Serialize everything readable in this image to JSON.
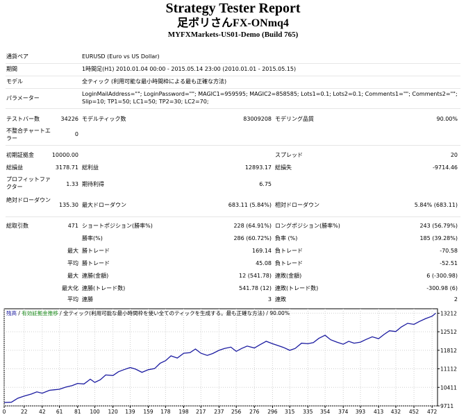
{
  "header": {
    "title": "Strategy Tester Report",
    "ea_name": "足ボリさんFX-ONmq4",
    "server": "MYFXMarkets-US01-Demo (Build 765)"
  },
  "info": {
    "symbol_label": "通貨ペア",
    "symbol_value": "EURUSD (Euro vs US Dollar)",
    "period_label": "期間",
    "period_value": "1時間足(H1) 2010.01.04 00:00 - 2015.05.14 23:00 (2010.01.01 - 2015.05.15)",
    "model_label": "モデル",
    "model_value": "全ティック (利用可能な最小時間枠による最も正確な方法)",
    "params_label": "パラメーター",
    "params_value": "LoginMailAddress=\"\"; LoginPassword=\"\"; MAGIC1=959595; MAGIC2=858585; Lots1=0.1; Lots2=0.1; Comments1=\"\"; Comments2=\"\"; Slip=10; TP1=50; LC1=50; TP2=30; LC2=70;"
  },
  "stats": {
    "bars_label": "テストバー数",
    "bars_value": "34226",
    "ticks_label": "モデルティック数",
    "ticks_value": "83009208",
    "quality_label": "モデリング品質",
    "quality_value": "90.00%",
    "mismatch_label": "不整合チャートエラー",
    "mismatch_value": "0",
    "deposit_label": "初期証拠金",
    "deposit_value": "10000.00",
    "spread_label": "スプレッド",
    "spread_value": "20",
    "gross_total_label": "総損益",
    "gross_total_value": "3178.71",
    "gross_profit_label": "総利益",
    "gross_profit_value": "12893.17",
    "gross_loss_label": "総損失",
    "gross_loss_value": "-9714.46",
    "pf_label": "プロフィットファクター",
    "pf_value": "1.33",
    "expected_label": "期待利得",
    "expected_value": "6.75",
    "abs_dd_label": "絶対ドローダウン",
    "abs_dd_value": "135.30",
    "max_dd_label": "最大ドローダウン",
    "max_dd_value": "683.11 (5.84%)",
    "rel_dd_label": "相対ドローダウン",
    "rel_dd_value": "5.84% (683.11)",
    "trades_label": "総取引数",
    "trades_value": "471",
    "short_label": "ショートポジション(勝率%)",
    "short_value": "228 (64.91%)",
    "long_label": "ロングポジション(勝率%)",
    "long_value": "243 (56.79%)",
    "win_label": "勝率(%)",
    "win_value": "286 (60.72%)",
    "loss_label": "負率 (%)",
    "loss_value": "185 (39.28%)",
    "largest_label": "最大",
    "largest_win_label": "勝トレード",
    "largest_win_value": "169.14",
    "largest_loss_label": "負トレード",
    "largest_loss_value": "-70.58",
    "avg_label": "平均",
    "avg_win_label": "勝トレード",
    "avg_win_value": "45.08",
    "avg_loss_label": "負トレード",
    "avg_loss_value": "-52.51",
    "max_label": "最大",
    "max_cons_win_label": "連勝(金額)",
    "max_cons_win_value": "12 (541.78)",
    "max_cons_loss_label": "連敗(金額)",
    "max_cons_loss_value": "6 (-300.98)",
    "maximal_label": "最大化",
    "maximal_win_label": "連勝(トレード数)",
    "maximal_win_value": "541.78 (12)",
    "maximal_loss_label": "連敗(トレード数)",
    "maximal_loss_value": "-300.98 (6)",
    "avg2_label": "平均",
    "avg_cons_win_label": "連勝",
    "avg_cons_win_value": "3",
    "avg_cons_loss_label": "連敗",
    "avg_cons_loss_value": "2"
  },
  "chart_legend": {
    "balance": "残高",
    "sep1": " / ",
    "equity": "有効証拠金推移",
    "sep2": " / ",
    "model": "全ティック(利用可能な最小時間枠を使い全てのティックを生成する。最も正確な方法)",
    "sep3": " / ",
    "quality": "90.00%"
  },
  "colors": {
    "balance_line": "#1a1aa0",
    "legend_balance": "#1a1aa0",
    "legend_equity": "#1a8a1a"
  },
  "chart_data": {
    "type": "line",
    "title": "",
    "xlabel": "",
    "ylabel": "",
    "x_ticks": [
      "0",
      "22",
      "42",
      "61",
      "81",
      "100",
      "120",
      "139",
      "159",
      "178",
      "198",
      "217",
      "237",
      "256",
      "276",
      "296",
      "315",
      "335",
      "354",
      "374",
      "393",
      "413",
      "432",
      "452",
      "472"
    ],
    "y_ticks": [
      "13212",
      "12512",
      "11812",
      "11112",
      "10411",
      "9711"
    ],
    "xlim": [
      0,
      478
    ],
    "ylim": [
      9711,
      13380
    ],
    "series": [
      {
        "x": [
          0,
          8,
          15,
          22,
          30,
          36,
          42,
          50,
          55,
          61,
          68,
          75,
          81,
          88,
          95,
          100,
          106,
          112,
          120,
          126,
          132,
          139,
          145,
          152,
          159,
          166,
          172,
          178,
          184,
          191,
          198,
          205,
          211,
          217,
          224,
          230,
          237,
          243,
          250,
          256,
          262,
          268,
          276,
          282,
          289,
          296,
          302,
          308,
          315,
          321,
          328,
          335,
          341,
          347,
          354,
          360,
          367,
          374,
          380,
          386,
          393,
          399,
          406,
          413,
          419,
          425,
          432,
          438,
          445,
          452,
          458,
          465,
          472,
          476
        ],
        "y": [
          9840,
          9850,
          10000,
          10080,
          10160,
          10240,
          10190,
          10300,
          10320,
          10340,
          10420,
          10480,
          10560,
          10540,
          10720,
          10600,
          10700,
          10880,
          10860,
          11000,
          11080,
          11160,
          11100,
          10980,
          11080,
          11120,
          11320,
          11420,
          11600,
          11520,
          11700,
          11720,
          11860,
          11700,
          11620,
          11690,
          11810,
          11880,
          11930,
          11770,
          11880,
          11970,
          11900,
          12020,
          12150,
          12060,
          11990,
          11920,
          11810,
          11880,
          12080,
          12060,
          12100,
          12260,
          12380,
          12210,
          12120,
          12040,
          12150,
          12080,
          12120,
          12220,
          12320,
          12250,
          12410,
          12550,
          12520,
          12690,
          12830,
          12790,
          12900,
          13010,
          13100,
          13212
        ]
      }
    ]
  }
}
